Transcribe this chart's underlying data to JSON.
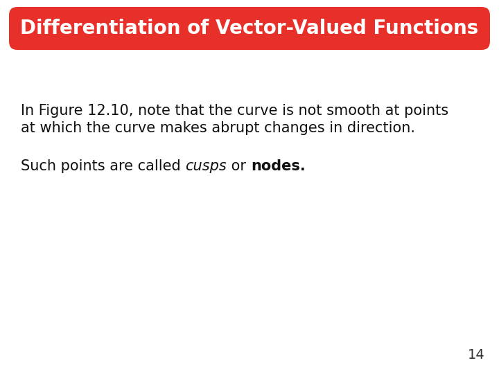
{
  "title": "Differentiation of Vector-Valued Functions",
  "title_bg_color": "#E8302A",
  "title_text_color": "#FFFFFF",
  "title_fontsize": 20,
  "body_bg_color": "#FFFFFF",
  "line1": "In Figure 12.10, note that the curve is not smooth at points",
  "line2": "at which the curve makes abrupt changes in direction.",
  "body_fontsize": 15,
  "page_number": "14",
  "page_number_fontsize": 14,
  "text_color": "#111111"
}
